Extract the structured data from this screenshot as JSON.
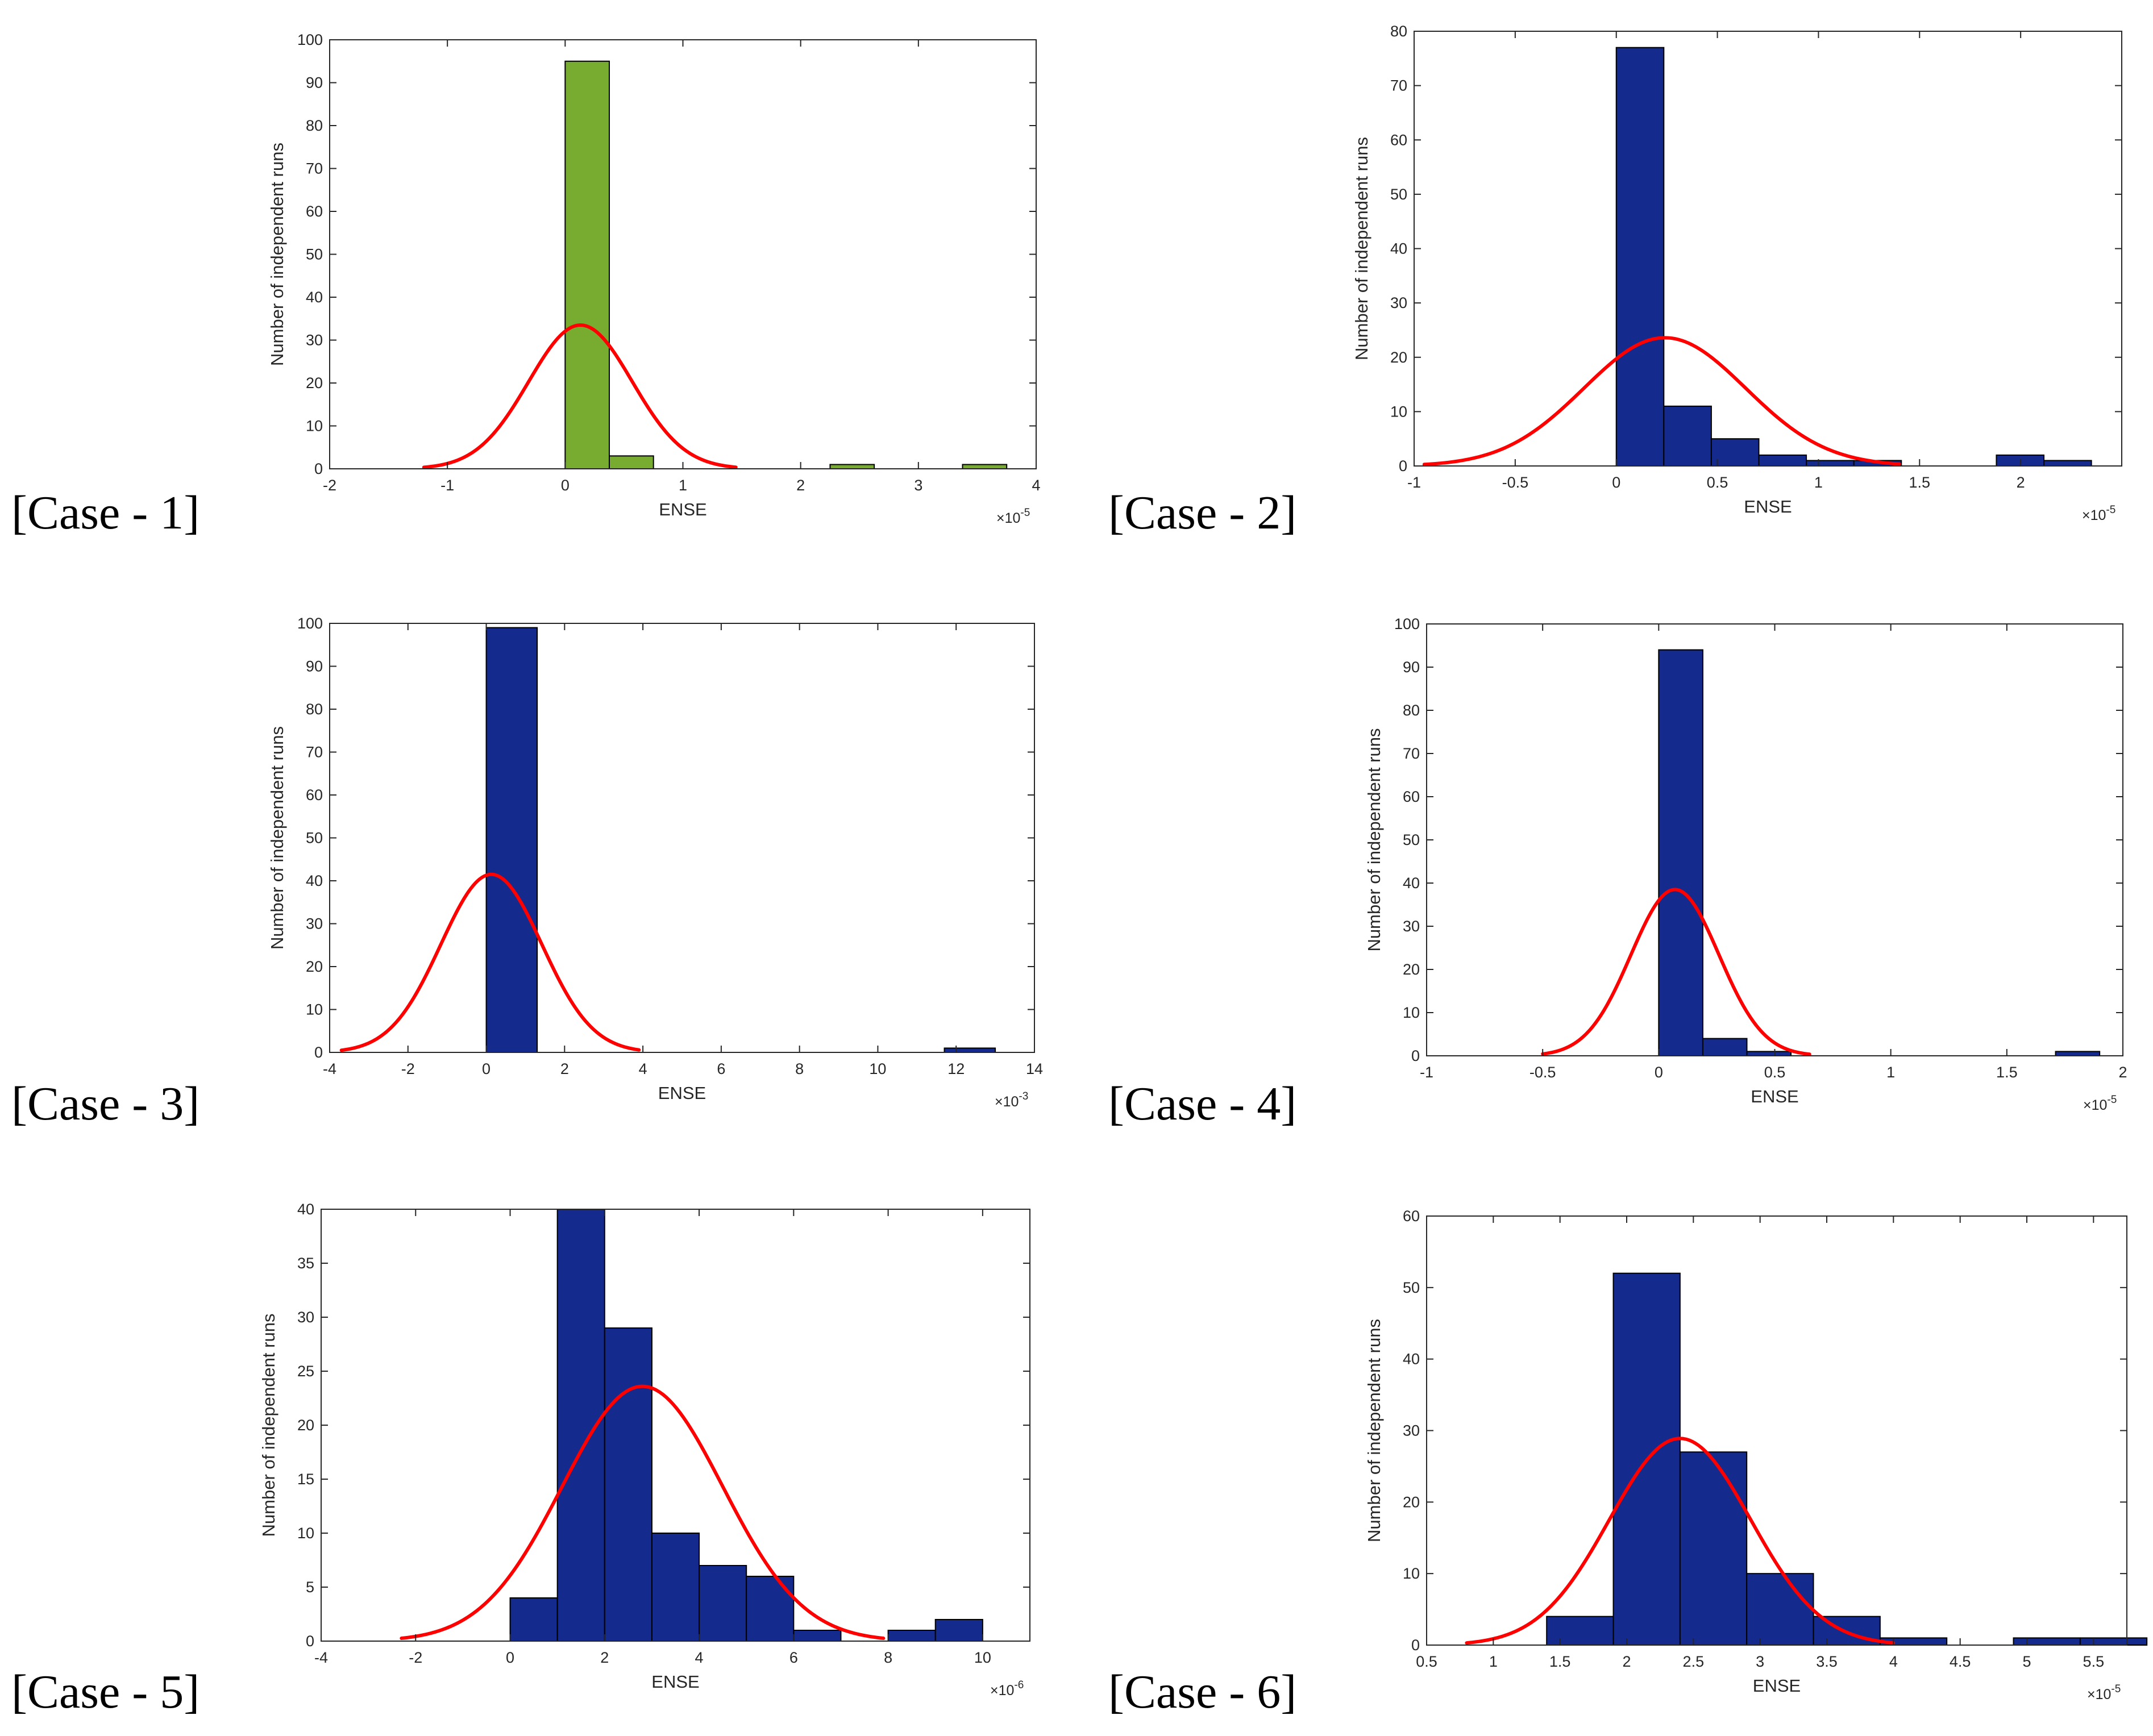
{
  "chart_data": [
    {
      "type": "bar",
      "case_label": "[Case - 1]",
      "xlabel": "ENSE",
      "ylabel": "Number of independent runs",
      "x_exponent_base": "×10",
      "x_exponent": "-5",
      "xlim": [
        -2,
        4
      ],
      "ylim": [
        0,
        100
      ],
      "xticks": [
        -2,
        -1,
        0,
        1,
        2,
        3,
        4
      ],
      "xtick_labels": [
        "-2",
        "-1",
        "0",
        "1",
        "2",
        "3",
        "4"
      ],
      "yticks": [
        0,
        10,
        20,
        30,
        40,
        50,
        60,
        70,
        80,
        90,
        100
      ],
      "bins": [
        {
          "x0": 0.0,
          "x1": 0.375,
          "count": 95
        },
        {
          "x0": 0.375,
          "x1": 0.75,
          "count": 3
        },
        {
          "x0": 2.25,
          "x1": 2.625,
          "count": 1
        },
        {
          "x0": 3.375,
          "x1": 3.75,
          "count": 1
        }
      ],
      "fit": {
        "mu": 0.13,
        "sigma": 0.44,
        "peak": 33.5,
        "x_from": -1.2,
        "x_to": 1.45
      },
      "colors": {
        "bar": "#77AC30",
        "fit": "#FF0000"
      }
    },
    {
      "type": "bar",
      "case_label": "[Case - 2]",
      "xlabel": "ENSE",
      "ylabel": "Number of independent runs",
      "x_exponent_base": "×10",
      "x_exponent": "-5",
      "xlim": [
        -1,
        2.5
      ],
      "ylim": [
        0,
        80
      ],
      "xticks": [
        -1,
        -0.5,
        0,
        0.5,
        1,
        1.5,
        2
      ],
      "xtick_labels": [
        "-1",
        "-0.5",
        "0",
        "0.5",
        "1",
        "1.5",
        "2"
      ],
      "yticks": [
        0,
        10,
        20,
        30,
        40,
        50,
        60,
        70,
        80
      ],
      "bins": [
        {
          "x0": 0.0,
          "x1": 0.235,
          "count": 77
        },
        {
          "x0": 0.235,
          "x1": 0.47,
          "count": 11
        },
        {
          "x0": 0.47,
          "x1": 0.705,
          "count": 5
        },
        {
          "x0": 0.705,
          "x1": 0.94,
          "count": 2
        },
        {
          "x0": 0.94,
          "x1": 1.175,
          "count": 1
        },
        {
          "x0": 1.175,
          "x1": 1.41,
          "count": 1
        },
        {
          "x0": 1.88,
          "x1": 2.115,
          "count": 2
        },
        {
          "x0": 2.115,
          "x1": 2.35,
          "count": 1
        }
      ],
      "fit": {
        "mu": 0.24,
        "sigma": 0.4,
        "peak": 23.6,
        "x_from": -0.95,
        "x_to": 1.4
      },
      "colors": {
        "bar": "#142A8C",
        "fit": "#FF0000"
      }
    },
    {
      "type": "bar",
      "case_label": "[Case - 3]",
      "xlabel": "ENSE",
      "ylabel": "Number of independent runs",
      "x_exponent_base": "×10",
      "x_exponent": "-3",
      "xlim": [
        -4,
        14
      ],
      "ylim": [
        0,
        100
      ],
      "xticks": [
        -4,
        -2,
        0,
        2,
        4,
        6,
        8,
        10,
        12,
        14
      ],
      "xtick_labels": [
        "-4",
        "-2",
        "0",
        "2",
        "4",
        "6",
        "8",
        "10",
        "12",
        "14"
      ],
      "yticks": [
        0,
        10,
        20,
        30,
        40,
        50,
        60,
        70,
        80,
        90,
        100
      ],
      "bins": [
        {
          "x0": 0.0,
          "x1": 1.3,
          "count": 99
        },
        {
          "x0": 11.7,
          "x1": 13.0,
          "count": 1
        }
      ],
      "fit": {
        "mu": 0.13,
        "sigma": 1.29,
        "peak": 41.5,
        "x_from": -3.7,
        "x_to": 3.9
      },
      "colors": {
        "bar": "#142A8C",
        "fit": "#FF0000"
      }
    },
    {
      "type": "bar",
      "case_label": "[Case - 4]",
      "xlabel": "ENSE",
      "ylabel": "Number of independent runs",
      "x_exponent_base": "×10",
      "x_exponent": "-5",
      "xlim": [
        -1,
        2
      ],
      "ylim": [
        0,
        100
      ],
      "xticks": [
        -1,
        -0.5,
        0,
        0.5,
        1,
        1.5,
        2
      ],
      "xtick_labels": [
        "-1",
        "-0.5",
        "0",
        "0.5",
        "1",
        "1.5",
        "2"
      ],
      "yticks": [
        0,
        10,
        20,
        30,
        40,
        50,
        60,
        70,
        80,
        90,
        100
      ],
      "bins": [
        {
          "x0": 0.0,
          "x1": 0.19,
          "count": 94
        },
        {
          "x0": 0.19,
          "x1": 0.38,
          "count": 4
        },
        {
          "x0": 0.38,
          "x1": 0.57,
          "count": 1
        },
        {
          "x0": 1.71,
          "x1": 1.9,
          "count": 1
        }
      ],
      "fit": {
        "mu": 0.07,
        "sigma": 0.19,
        "peak": 38.5,
        "x_from": -0.5,
        "x_to": 0.65
      },
      "colors": {
        "bar": "#142A8C",
        "fit": "#FF0000"
      }
    },
    {
      "type": "bar",
      "case_label": "[Case - 5]",
      "xlabel": "ENSE",
      "ylabel": "Number of independent runs",
      "x_exponent_base": "×10",
      "x_exponent": "-6",
      "xlim": [
        -4,
        11
      ],
      "ylim": [
        0,
        40
      ],
      "xticks": [
        -4,
        -2,
        0,
        2,
        4,
        6,
        8,
        10
      ],
      "xtick_labels": [
        "-4",
        "-2",
        "0",
        "2",
        "4",
        "6",
        "8",
        "10"
      ],
      "yticks": [
        0,
        5,
        10,
        15,
        20,
        25,
        30,
        35,
        40
      ],
      "bins": [
        {
          "x0": 0.0,
          "x1": 1.0,
          "count": 4
        },
        {
          "x0": 1.0,
          "x1": 2.0,
          "count": 40
        },
        {
          "x0": 2.0,
          "x1": 3.0,
          "count": 29
        },
        {
          "x0": 3.0,
          "x1": 4.0,
          "count": 10
        },
        {
          "x0": 4.0,
          "x1": 5.0,
          "count": 7
        },
        {
          "x0": 5.0,
          "x1": 6.0,
          "count": 6
        },
        {
          "x0": 6.0,
          "x1": 7.0,
          "count": 1
        },
        {
          "x0": 8.0,
          "x1": 9.0,
          "count": 1
        },
        {
          "x0": 9.0,
          "x1": 10.0,
          "count": 2
        }
      ],
      "fit": {
        "mu": 2.8,
        "sigma": 1.7,
        "peak": 23.6,
        "x_from": -2.3,
        "x_to": 7.9
      },
      "colors": {
        "bar": "#142A8C",
        "fit": "#FF0000"
      }
    },
    {
      "type": "bar",
      "case_label": "[Case - 6]",
      "xlabel": "ENSE",
      "ylabel": "Number of independent runs",
      "x_exponent_base": "×10",
      "x_exponent": "-5",
      "xlim": [
        0.5,
        5.75
      ],
      "ylim": [
        0,
        60
      ],
      "xticks": [
        0.5,
        1,
        1.5,
        2,
        2.5,
        3,
        3.5,
        4,
        4.5,
        5,
        5.5
      ],
      "xtick_labels": [
        "0.5",
        "1",
        "1.5",
        "2",
        "2.5",
        "3",
        "3.5",
        "4",
        "4.5",
        "5",
        "5.5"
      ],
      "yticks": [
        0,
        10,
        20,
        30,
        40,
        50,
        60
      ],
      "bins": [
        {
          "x0": 1.4,
          "x1": 1.9,
          "count": 4
        },
        {
          "x0": 1.9,
          "x1": 2.4,
          "count": 52
        },
        {
          "x0": 2.4,
          "x1": 2.9,
          "count": 27
        },
        {
          "x0": 2.9,
          "x1": 3.4,
          "count": 10
        },
        {
          "x0": 3.4,
          "x1": 3.9,
          "count": 4
        },
        {
          "x0": 3.9,
          "x1": 4.4,
          "count": 1
        },
        {
          "x0": 4.9,
          "x1": 5.4,
          "count": 1
        },
        {
          "x0": 5.4,
          "x1": 5.9,
          "count": 1
        }
      ],
      "fit": {
        "mu": 2.4,
        "sigma": 0.53,
        "peak": 28.9,
        "x_from": 0.8,
        "x_to": 4.0
      },
      "colors": {
        "bar": "#142A8C",
        "fit": "#FF0000"
      }
    }
  ]
}
